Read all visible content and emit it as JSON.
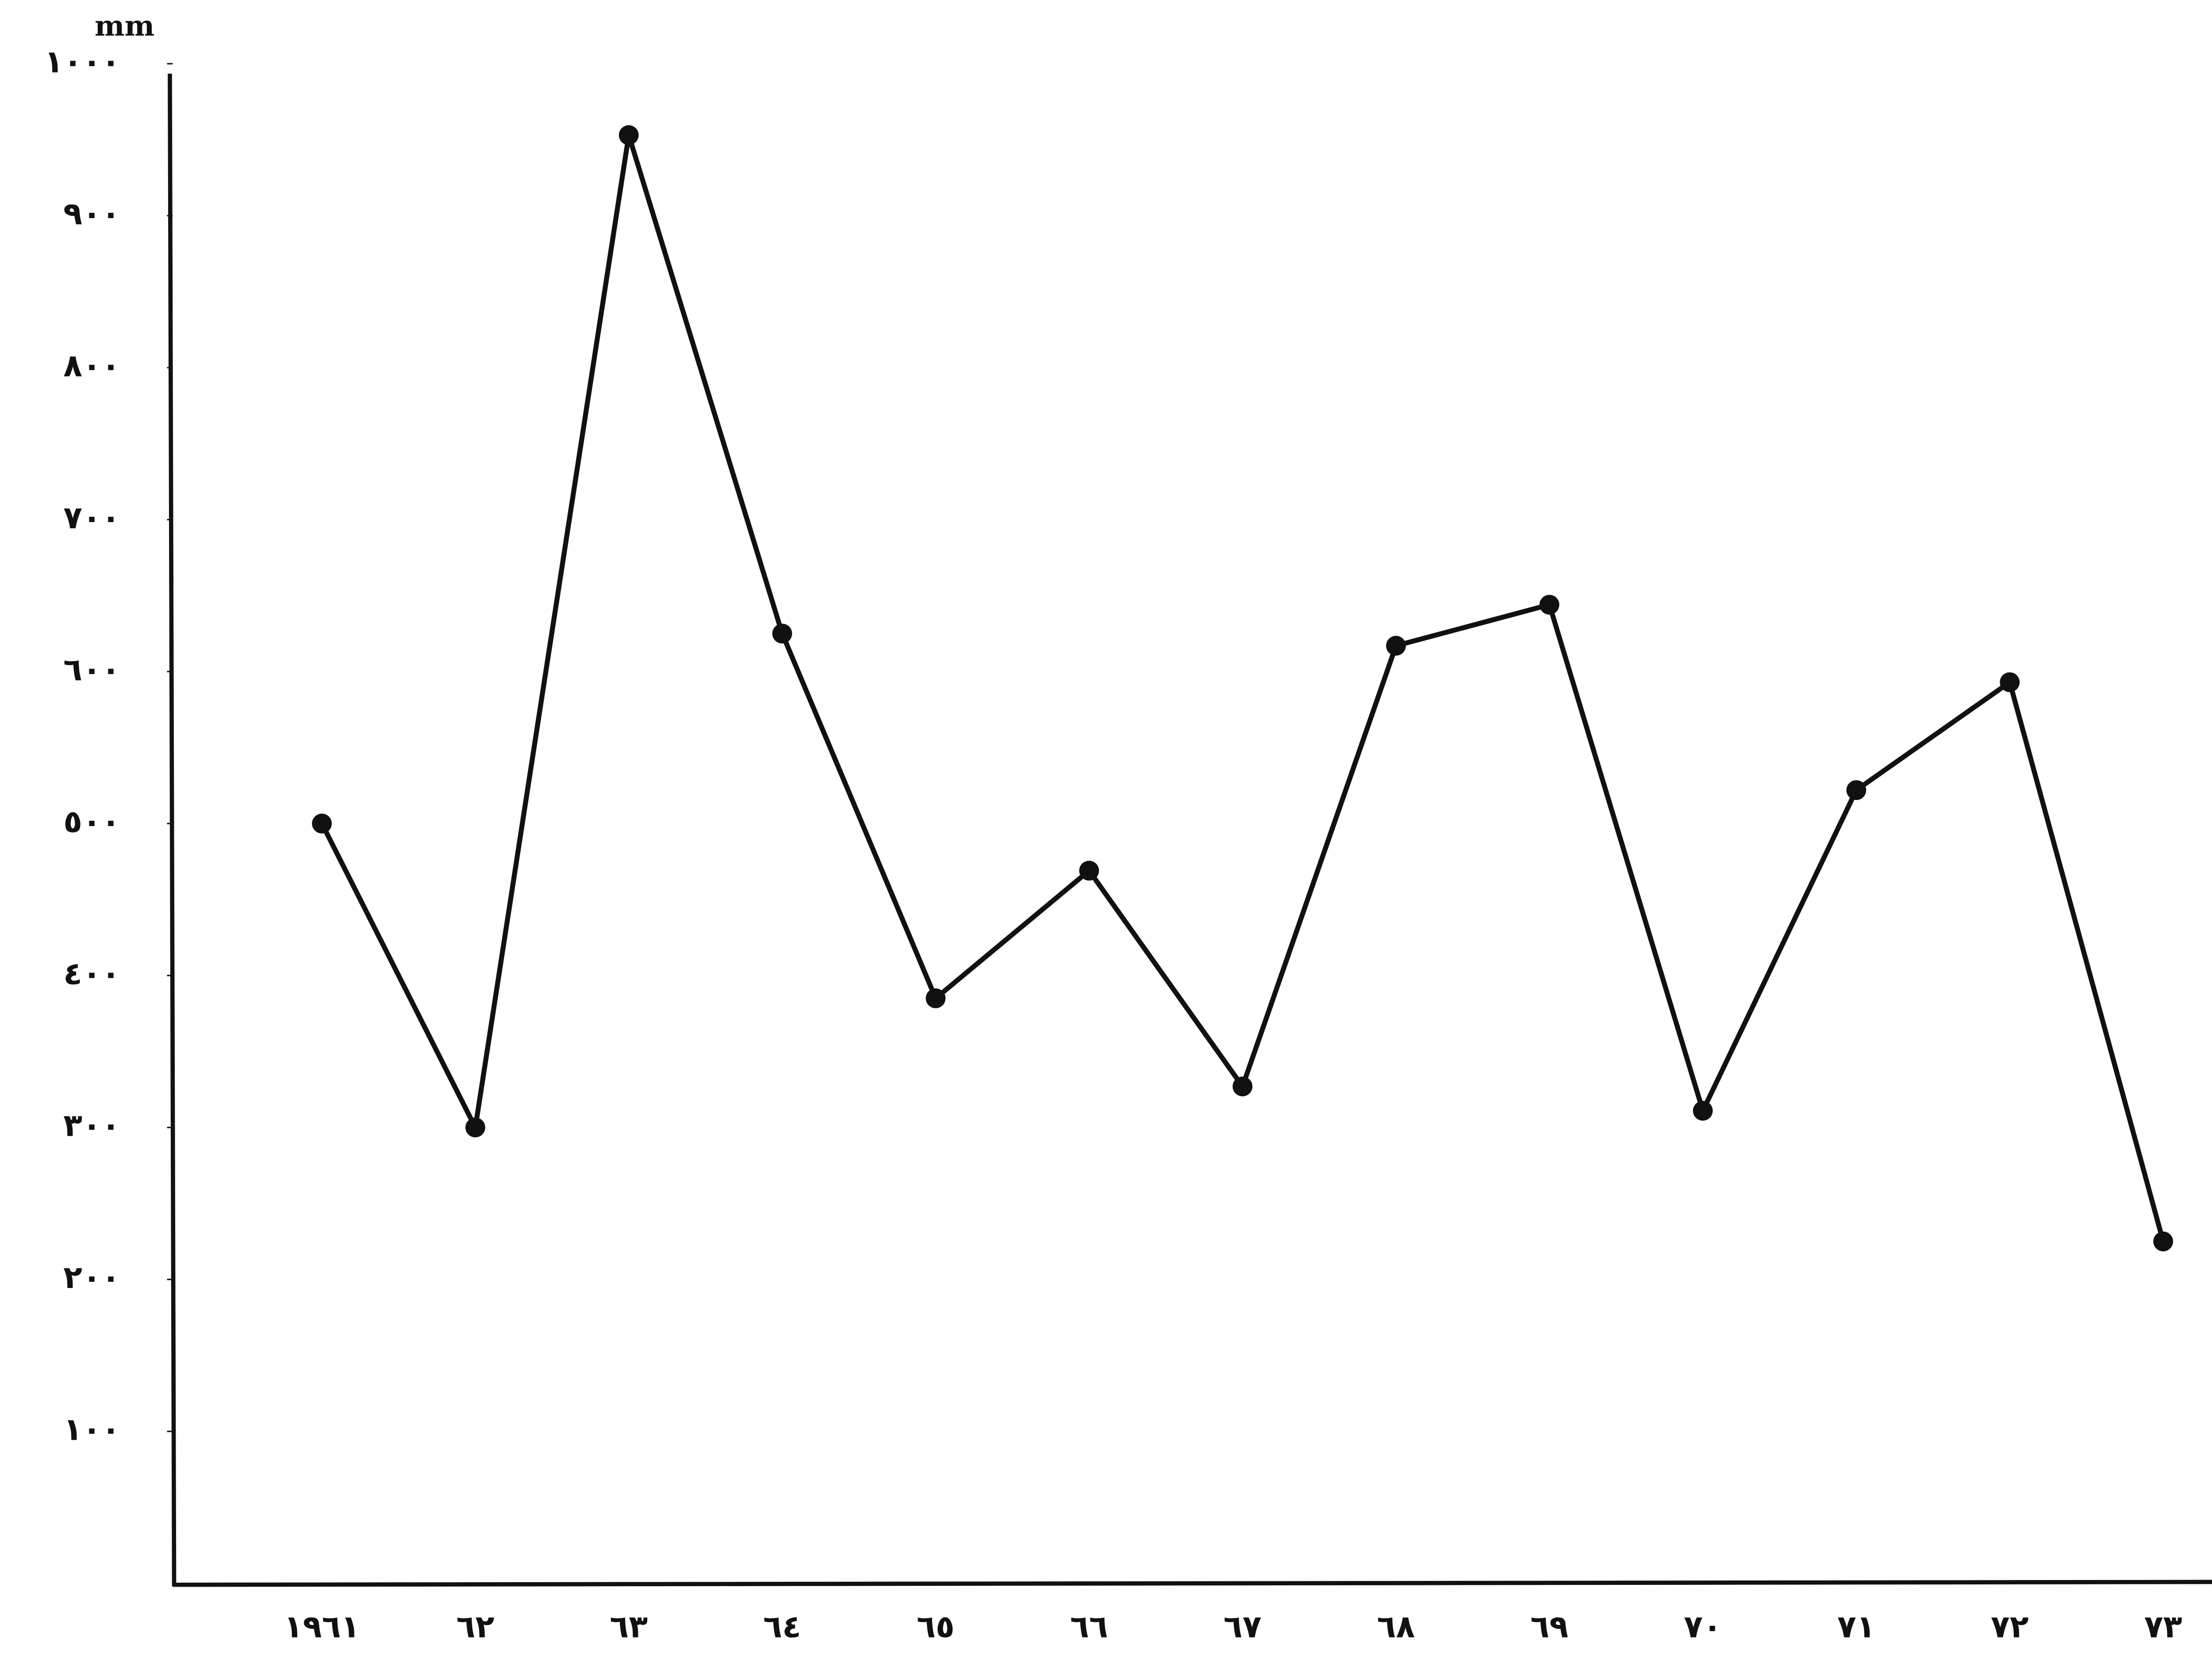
{
  "chart_data": {
    "type": "line",
    "y_label": "mm",
    "categories": [
      "١٩٦١",
      "٦٢",
      "٦٣",
      "٦٤",
      "٦٥",
      "٦٦",
      "٦٧",
      "٦٨",
      "٦٩",
      "٧٠",
      "٧١",
      "٧٢",
      "٧٣"
    ],
    "series": [
      {
        "color": "#111111",
        "values": [
          500,
          300,
          953,
          625,
          385,
          469,
          327,
          617,
          644,
          311,
          522,
          593,
          225
        ]
      }
    ],
    "ylim": [
      0,
      1000
    ],
    "yticks": [
      {
        "value": 100,
        "label": "١٠٠"
      },
      {
        "value": 200,
        "label": "٢٠٠"
      },
      {
        "value": 300,
        "label": "٣٠٠"
      },
      {
        "value": 400,
        "label": "٤٠٠"
      },
      {
        "value": 500,
        "label": "٥٠٠"
      },
      {
        "value": 600,
        "label": "٦٠٠"
      },
      {
        "value": 700,
        "label": "٧٠٠"
      },
      {
        "value": 800,
        "label": "٨٠٠"
      },
      {
        "value": 900,
        "label": "٩٠٠"
      },
      {
        "value": 1000,
        "label": "١٠٠٠"
      }
    ],
    "grid": false
  }
}
